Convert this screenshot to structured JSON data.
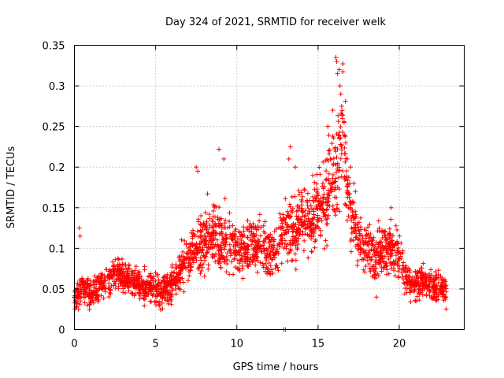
{
  "chart_data": {
    "type": "scatter",
    "title": "Day 324 of 2021, SRMTID for receiver welk",
    "xlabel": "GPS time / hours",
    "ylabel": "SRMTID / TECUs",
    "xlim": [
      0,
      24
    ],
    "ylim": [
      0,
      0.35
    ],
    "xticks": [
      0,
      5,
      10,
      15,
      20
    ],
    "xtick_labels": [
      "0",
      "5",
      "10",
      "15",
      "20"
    ],
    "yticks": [
      0,
      0.05,
      0.1,
      0.15,
      0.2,
      0.25,
      0.3,
      0.35
    ],
    "ytick_labels": [
      "0",
      "0.05",
      "0.1",
      "0.15",
      "0.2",
      "0.25",
      "0.3",
      "0.35"
    ],
    "grid": true,
    "marker": "+",
    "color": "#ff0000",
    "series": [
      {
        "name": "SRMTID",
        "trend": {
          "x": [
            0,
            0.5,
            1,
            1.5,
            2,
            2.5,
            3,
            3.5,
            4,
            4.5,
            5,
            5.5,
            6,
            6.5,
            7,
            7.5,
            8,
            8.5,
            9,
            9.5,
            10,
            10.5,
            11,
            11.5,
            12,
            12.5,
            13,
            13.5,
            14,
            14.5,
            15,
            15.5,
            16,
            16.5,
            17,
            17.5,
            18,
            18.5,
            19,
            19.5,
            20,
            20.5,
            21,
            21.5,
            22,
            22.5,
            23
          ],
          "y": [
            0.04,
            0.05,
            0.045,
            0.05,
            0.06,
            0.07,
            0.065,
            0.06,
            0.055,
            0.05,
            0.05,
            0.05,
            0.055,
            0.07,
            0.09,
            0.1,
            0.11,
            0.12,
            0.115,
            0.11,
            0.1,
            0.095,
            0.105,
            0.1,
            0.095,
            0.1,
            0.13,
            0.12,
            0.14,
            0.13,
            0.15,
            0.16,
            0.18,
            0.24,
            0.14,
            0.11,
            0.1,
            0.09,
            0.1,
            0.1,
            0.09,
            0.06,
            0.055,
            0.06,
            0.055,
            0.05,
            0.05
          ],
          "spread": [
            0.015,
            0.02,
            0.02,
            0.02,
            0.02,
            0.02,
            0.02,
            0.02,
            0.015,
            0.02,
            0.02,
            0.02,
            0.02,
            0.025,
            0.03,
            0.03,
            0.035,
            0.04,
            0.045,
            0.04,
            0.03,
            0.03,
            0.03,
            0.03,
            0.03,
            0.03,
            0.04,
            0.04,
            0.04,
            0.04,
            0.04,
            0.05,
            0.06,
            0.07,
            0.04,
            0.03,
            0.03,
            0.03,
            0.03,
            0.03,
            0.03,
            0.02,
            0.02,
            0.02,
            0.02,
            0.02,
            0.02
          ]
        },
        "x": [
          0.3,
          0.35,
          8.9,
          9.2,
          7.5,
          7.6,
          13.2,
          13.3,
          13.6,
          15.6,
          15.9,
          16.1,
          16.15,
          16.2,
          16.3,
          16.35,
          16.4,
          16.45,
          16.5,
          16.6,
          16.7,
          16.8,
          17.0,
          17.2,
          17.3,
          18.6,
          19.5,
          12.9,
          13.0
        ],
        "y": [
          0.125,
          0.115,
          0.222,
          0.21,
          0.2,
          0.195,
          0.21,
          0.225,
          0.2,
          0.25,
          0.27,
          0.335,
          0.33,
          0.315,
          0.32,
          0.3,
          0.29,
          0.275,
          0.26,
          0.255,
          0.23,
          0.21,
          0.2,
          0.18,
          0.17,
          0.04,
          0.15,
          0.0,
          0.0
        ]
      }
    ]
  }
}
